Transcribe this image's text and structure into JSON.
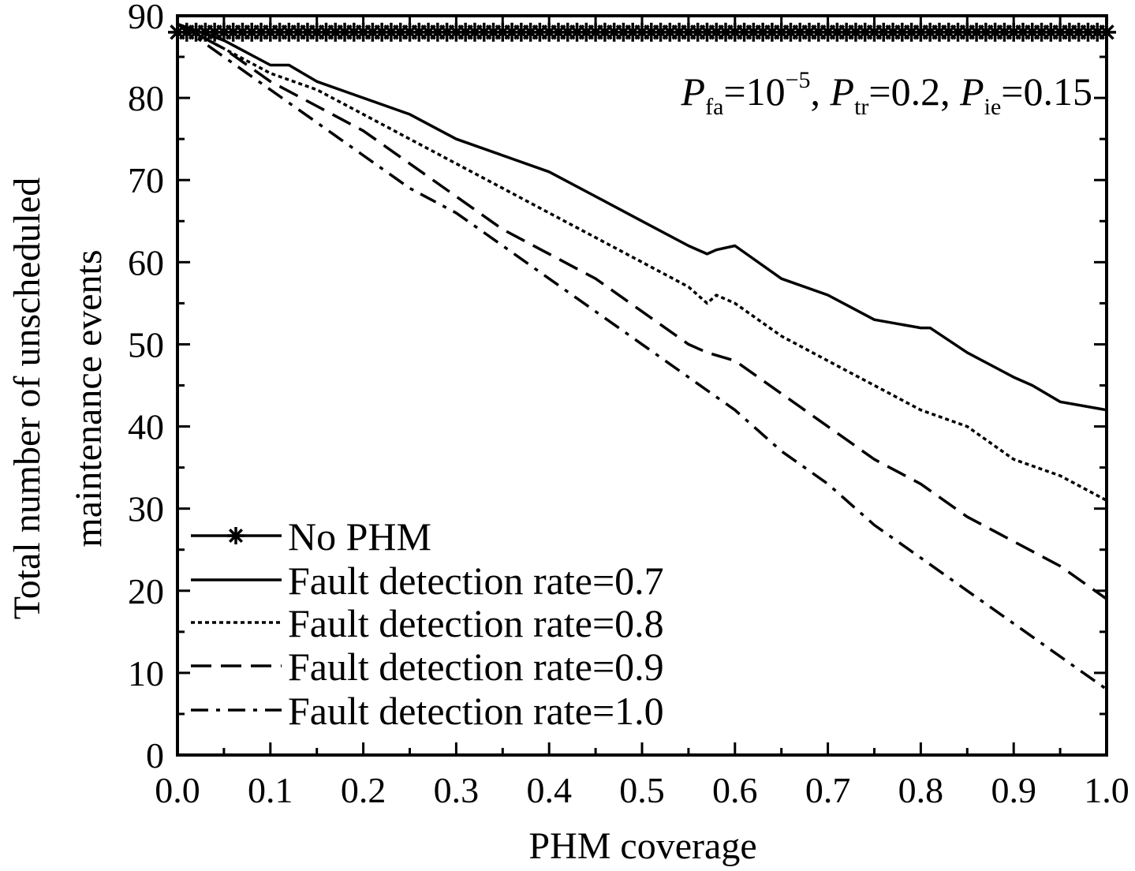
{
  "chart_data": {
    "type": "line",
    "xlabel": "PHM coverage",
    "ylabel_line1": "Total number of unscheduled",
    "ylabel_line2": "maintenance events",
    "xlim": [
      0,
      1
    ],
    "ylim": [
      0,
      90
    ],
    "xticks": [
      "0.0",
      "0.1",
      "0.2",
      "0.3",
      "0.4",
      "0.5",
      "0.6",
      "0.7",
      "0.8",
      "0.9",
      "1.0"
    ],
    "yticks": [
      "0",
      "10",
      "20",
      "30",
      "40",
      "50",
      "60",
      "70",
      "80",
      "90"
    ],
    "annotation": {
      "p1": "P",
      "s1": "fa",
      "t1": "=10",
      "e1": "−5",
      "c1": ", ",
      "p2": "P",
      "s2": "tr",
      "t2": "=0.2, ",
      "p3": "P",
      "s3": "ie",
      "t3": "=0.15"
    },
    "legend_position": "bottom-left",
    "series": [
      {
        "name": "No PHM",
        "style": "solid-star",
        "x": [
          0.0,
          1.0
        ],
        "y": [
          88,
          88
        ]
      },
      {
        "name": "Fault detection rate=0.7",
        "style": "solid",
        "x": [
          0.0,
          0.05,
          0.1,
          0.12,
          0.15,
          0.2,
          0.25,
          0.3,
          0.35,
          0.4,
          0.45,
          0.5,
          0.55,
          0.57,
          0.58,
          0.6,
          0.65,
          0.7,
          0.75,
          0.8,
          0.81,
          0.85,
          0.9,
          0.92,
          0.95,
          1.0
        ],
        "y": [
          89,
          87,
          84,
          84,
          82,
          80,
          78,
          75,
          73,
          71,
          68,
          65,
          62,
          61,
          61.5,
          62,
          58,
          56,
          53,
          52,
          52,
          49,
          46,
          45,
          43,
          42
        ]
      },
      {
        "name": "Fault detection rate=0.8",
        "style": "dotted",
        "x": [
          0.0,
          0.05,
          0.1,
          0.15,
          0.2,
          0.25,
          0.3,
          0.35,
          0.4,
          0.45,
          0.5,
          0.55,
          0.57,
          0.58,
          0.6,
          0.65,
          0.7,
          0.75,
          0.8,
          0.85,
          0.9,
          0.95,
          1.0
        ],
        "y": [
          89,
          86,
          83,
          81,
          78,
          75,
          72,
          69,
          66,
          63,
          60,
          57,
          55,
          56,
          55,
          51,
          48,
          45,
          42,
          40,
          36,
          34,
          31
        ]
      },
      {
        "name": "Fault detection rate=0.9",
        "style": "dashed",
        "x": [
          0.0,
          0.05,
          0.1,
          0.15,
          0.2,
          0.25,
          0.3,
          0.35,
          0.4,
          0.45,
          0.5,
          0.55,
          0.57,
          0.6,
          0.65,
          0.7,
          0.75,
          0.8,
          0.85,
          0.9,
          0.95,
          1.0
        ],
        "y": [
          89,
          86,
          82,
          79,
          76,
          72,
          68,
          64,
          61,
          58,
          54,
          50,
          49,
          48,
          44,
          40,
          36,
          33,
          29,
          26,
          23,
          19
        ]
      },
      {
        "name": "Fault detection rate=1.0",
        "style": "dashdot",
        "x": [
          0.0,
          0.05,
          0.1,
          0.15,
          0.2,
          0.25,
          0.3,
          0.35,
          0.4,
          0.45,
          0.5,
          0.55,
          0.6,
          0.65,
          0.7,
          0.75,
          0.8,
          0.85,
          0.9,
          0.95,
          1.0
        ],
        "y": [
          89,
          85,
          81,
          77,
          73,
          69,
          66,
          62,
          58,
          54,
          50,
          46,
          42,
          37,
          33,
          28,
          24,
          20,
          16,
          12,
          8
        ]
      }
    ]
  }
}
